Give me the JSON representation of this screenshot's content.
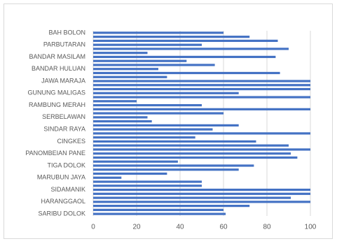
{
  "chart_data": {
    "type": "bar",
    "orientation": "horizontal",
    "color": "#4472c4",
    "categories": [
      "BAH BOLON",
      null,
      null,
      "PARBUTARAN",
      null,
      null,
      "BANDAR MASILAM",
      null,
      null,
      "BANDAR HULUAN",
      null,
      null,
      "JAWA MARAJA",
      null,
      null,
      "GUNUNG MALIGAS",
      null,
      null,
      "RAMBUNG MERAH",
      null,
      null,
      "SERBELAWAN",
      null,
      null,
      "SINDAR RAYA",
      null,
      null,
      "CINGKES",
      null,
      null,
      "PANOMBEIAN PANE",
      null,
      null,
      "TIGA DOLOK",
      null,
      null,
      "MARUBUN JAYA",
      null,
      null,
      "SIDAMANIK",
      null,
      null,
      "HARANGGAOL",
      null,
      null,
      "SARIBU DOLOK"
    ],
    "values": [
      60,
      72,
      85,
      50,
      90,
      25,
      84,
      43,
      56,
      30,
      86,
      34,
      100,
      100,
      100,
      67,
      100,
      20,
      50,
      100,
      60,
      25,
      27,
      67,
      55,
      100,
      47,
      75,
      90,
      100,
      91,
      94,
      39,
      74,
      67,
      34,
      13,
      50,
      50,
      100,
      100,
      91,
      100,
      72,
      60,
      61
    ],
    "xlim": [
      0,
      100
    ],
    "xticks": [
      0,
      20,
      40,
      60,
      80,
      100
    ],
    "grid": true
  }
}
